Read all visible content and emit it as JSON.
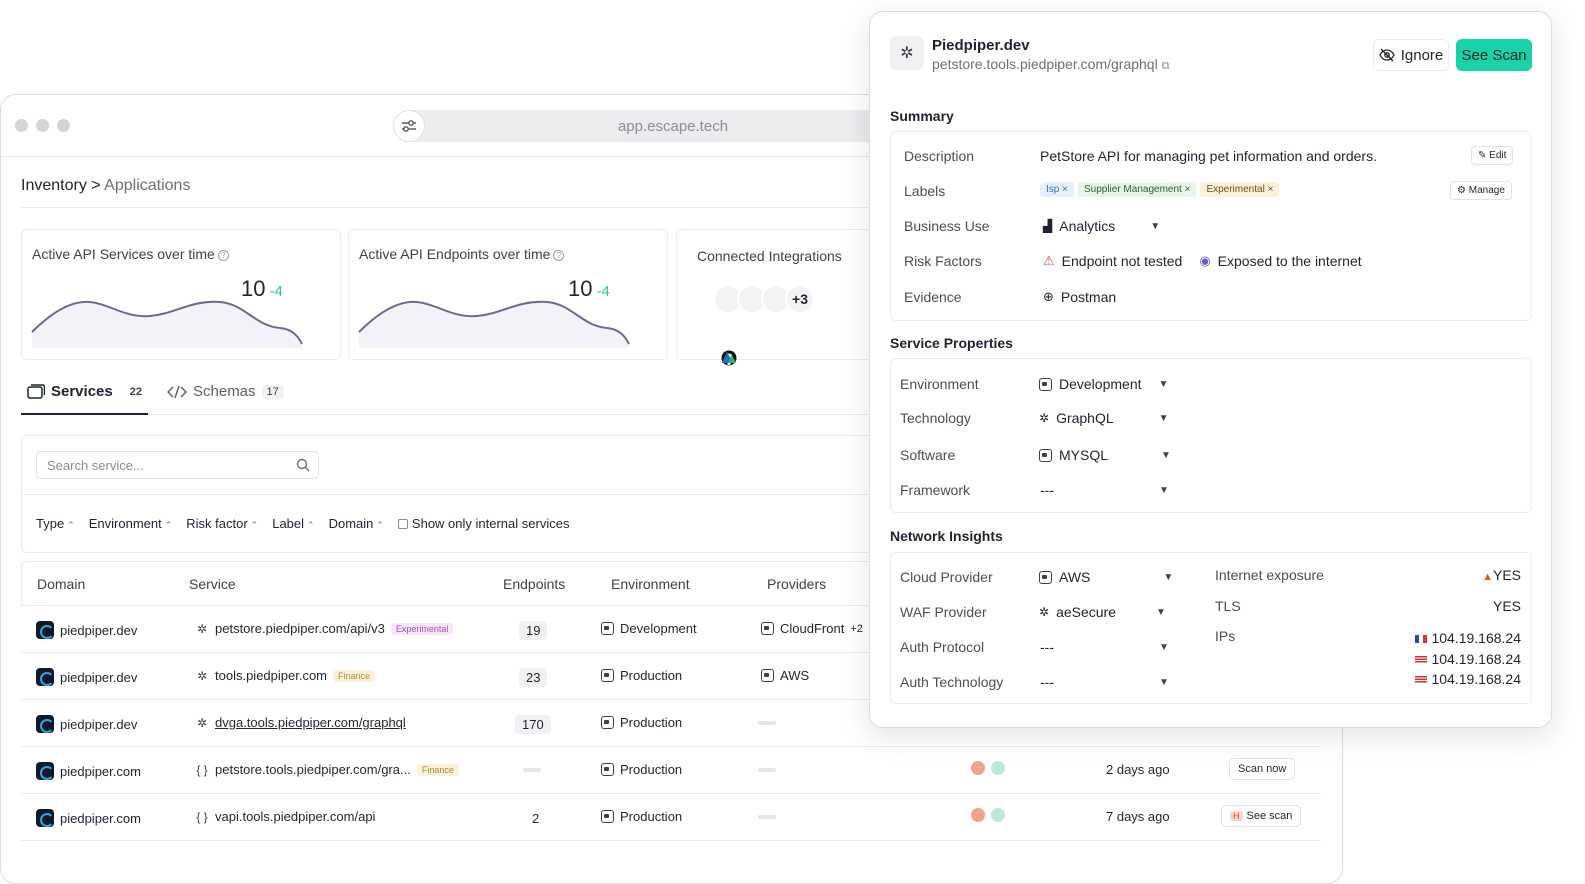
{
  "browser": {
    "url": "app.escape.tech"
  },
  "breadcrumb": {
    "root": "Inventory",
    "separator": ">",
    "current": "Applications"
  },
  "cards": [
    {
      "title": "Active API Services over time",
      "value": "10",
      "delta": "-4"
    },
    {
      "title": "Active API Endpoints over time",
      "value": "10",
      "delta": "-4"
    },
    {
      "title": "Connected Integrations",
      "extra": "+3"
    }
  ],
  "tabs": [
    {
      "label": "Services",
      "count": "22",
      "icon": "services-icon"
    },
    {
      "label": "Schemas",
      "count": "17",
      "icon": "code-icon"
    }
  ],
  "search": {
    "placeholder": "Search service..."
  },
  "filters": {
    "items": [
      "Type",
      "Environment",
      "Risk factor",
      "Label",
      "Domain"
    ],
    "checkbox_label": "Show only internal services"
  },
  "table": {
    "headers": [
      "Domain",
      "Service",
      "Endpoints",
      "Environment",
      "Providers"
    ],
    "rows": [
      {
        "domain": "piedpiper.dev",
        "service": "petstore.piedpiper.com/api/v3",
        "badge": "Experimental",
        "endpoints": "19",
        "environment": "Development",
        "provider": "CloudFront",
        "provider_extra": "+2",
        "time": "",
        "action": ""
      },
      {
        "domain": "piedpiper.dev",
        "service": "tools.piedpiper.com",
        "badge": "Finance",
        "endpoints": "23",
        "environment": "Production",
        "provider": "AWS",
        "provider_extra": "",
        "time": "",
        "action": ""
      },
      {
        "domain": "piedpiper.dev",
        "service": "dvga.tools.piedpiper.com/graphql",
        "badge": "",
        "endpoints": "170",
        "environment": "Production",
        "provider": "",
        "provider_extra": "",
        "time": "",
        "action": ""
      },
      {
        "domain": "piedpiper.com",
        "service": "petstore.tools.piedpiper.com/gra...",
        "badge": "Finance",
        "endpoints": "",
        "environment": "Production",
        "provider": "",
        "provider_extra": "",
        "time": "2 days ago",
        "action": "Scan now"
      },
      {
        "domain": "piedpiper.com",
        "service": "vapi.tools.piedpiper.com/api",
        "badge": "",
        "endpoints": "2",
        "environment": "Production",
        "provider": "",
        "provider_extra": "",
        "time": "7 days ago",
        "action": "See scan"
      }
    ]
  },
  "panel": {
    "title": "Piedpiper.dev",
    "subtitle": "petstore.tools.piedpiper.com/graphql",
    "ignore_label": "Ignore",
    "scan_label": "See Scan",
    "summary": {
      "title": "Summary",
      "description_label": "Description",
      "description": "PetStore API for managing pet information and orders.",
      "edit_label": "Edit",
      "labels_label": "Labels",
      "labels": [
        "Isp",
        "Supplier Management",
        "Experimental"
      ],
      "manage_label": "Manage",
      "business_use_label": "Business Use",
      "business_use": "Analytics",
      "risk_label": "Risk Factors",
      "risk_1": "Endpoint not tested",
      "risk_2": "Exposed to the internet",
      "evidence_label": "Evidence",
      "evidence": "Postman"
    },
    "service_props": {
      "title": "Service Properties",
      "environment_label": "Environment",
      "environment": "Development",
      "technology_label": "Technology",
      "technology": "GraphQL",
      "software_label": "Software",
      "software": "MYSQL",
      "framework_label": "Framework",
      "framework": "---"
    },
    "network": {
      "title": "Network Insights",
      "cloud_label": "Cloud Provider",
      "cloud": "AWS",
      "waf_label": "WAF Provider",
      "waf": "aeSecure",
      "auth_protocol_label": "Auth Protocol",
      "auth_protocol": "---",
      "auth_tech_label": "Auth Technology",
      "auth_tech": "---",
      "exposure_label": "Internet exposure",
      "exposure": "YES",
      "tls_label": "TLS",
      "tls": "YES",
      "ips_label": "IPs",
      "ips": [
        "104.19.168.24",
        "104.19.168.24",
        "104.19.168.24"
      ]
    }
  }
}
